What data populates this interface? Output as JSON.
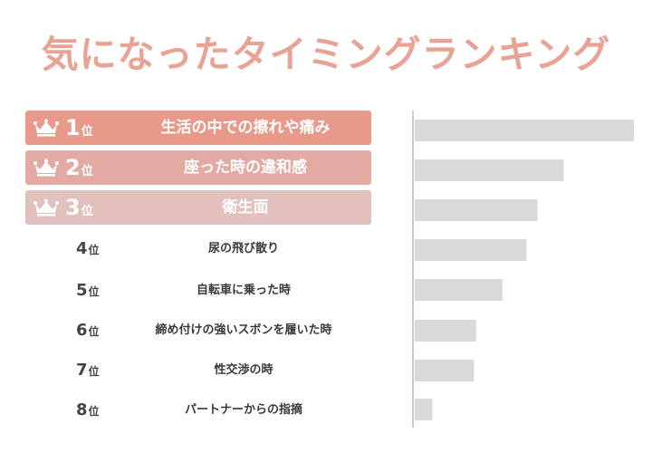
{
  "title": "気になったタイミングランキング",
  "colors": {
    "title": "#e8a394",
    "rank1": "#e9998a",
    "rank2": "#e3aaa4",
    "rank3": "#e2c1bd",
    "bar": "#d9d9d9",
    "axis": "#cccccc"
  },
  "rank_suffix": "位",
  "rankings": [
    {
      "rank": "1",
      "label": "生活の中での擦れや痛み"
    },
    {
      "rank": "2",
      "label": "座った時の違和感"
    },
    {
      "rank": "3",
      "label": "衛生面"
    },
    {
      "rank": "4",
      "label": "尿の飛び散り"
    },
    {
      "rank": "5",
      "label": "自転車に乗った時"
    },
    {
      "rank": "6",
      "label": "締め付けの強いスボンを履いた時"
    },
    {
      "rank": "7",
      "label": "性交渉の時"
    },
    {
      "rank": "8",
      "label": "パートナーからの指摘"
    }
  ],
  "chart_data": {
    "type": "bar",
    "orientation": "horizontal",
    "categories": [
      "生活の中での擦れや痛み",
      "座った時の違和感",
      "衛生面",
      "尿の飛び散り",
      "自転車に乗った時",
      "締め付けの強いスボンを履いた時",
      "性交渉の時",
      "パートナーからの指摘"
    ],
    "values": [
      100,
      68,
      56,
      51,
      40,
      28,
      27,
      8
    ],
    "xlim": [
      0,
      100
    ],
    "grid": false
  }
}
